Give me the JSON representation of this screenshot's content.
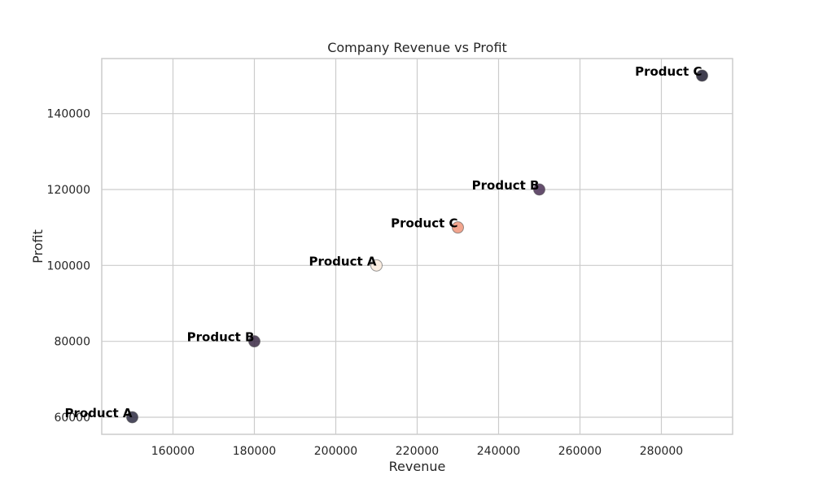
{
  "chart_data": {
    "type": "scatter",
    "title": "Company Revenue vs Profit",
    "xlabel": "Revenue",
    "ylabel": "Profit",
    "xlim": [
      142500,
      297500
    ],
    "ylim": [
      55500,
      154500
    ],
    "xticks": [
      160000,
      180000,
      200000,
      220000,
      240000,
      260000,
      280000
    ],
    "yticks": [
      60000,
      80000,
      100000,
      120000,
      140000
    ],
    "grid": true,
    "points": [
      {
        "x": 150000,
        "y": 60000,
        "label": "Product A",
        "color": "#2d2c42"
      },
      {
        "x": 180000,
        "y": 80000,
        "label": "Product B",
        "color": "#3b2a45"
      },
      {
        "x": 210000,
        "y": 100000,
        "label": "Product A",
        "color": "#faebdd"
      },
      {
        "x": 230000,
        "y": 110000,
        "label": "Product C",
        "color": "#f0957a"
      },
      {
        "x": 250000,
        "y": 120000,
        "label": "Product B",
        "color": "#4a2f55"
      },
      {
        "x": 290000,
        "y": 150000,
        "label": "Product C",
        "color": "#1e1c30"
      }
    ]
  }
}
